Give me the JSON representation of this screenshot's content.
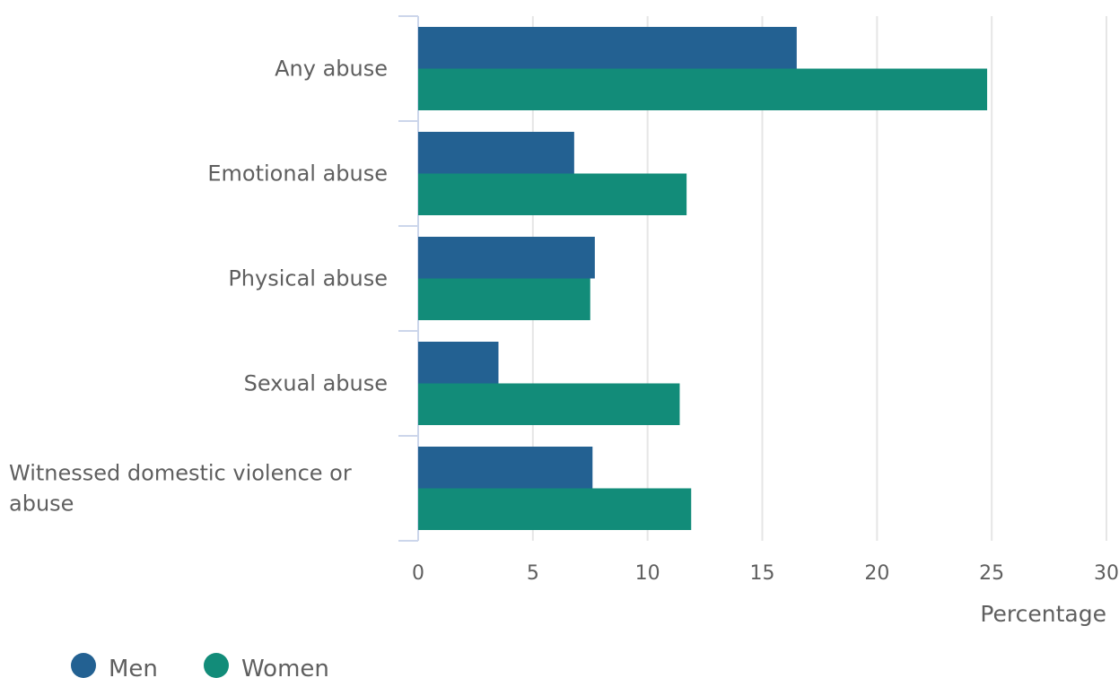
{
  "chart_data": {
    "type": "bar",
    "orientation": "horizontal",
    "categories": [
      "Any abuse",
      "Emotional abuse",
      "Physical abuse",
      "Sexual abuse",
      "Witnessed domestic violence or abuse"
    ],
    "series": [
      {
        "name": "Men",
        "color": "#236192",
        "values": [
          16.5,
          6.8,
          7.7,
          3.5,
          7.6
        ]
      },
      {
        "name": "Women",
        "color": "#128c79",
        "values": [
          24.8,
          11.7,
          7.5,
          11.4,
          11.9
        ]
      }
    ],
    "xlabel": "Percentage",
    "ylabel": "",
    "xlim": [
      0,
      30
    ],
    "xticks": [
      "0",
      "5",
      "10",
      "15",
      "20",
      "25",
      "30"
    ],
    "grid": true,
    "legend_position": "bottom-left"
  }
}
